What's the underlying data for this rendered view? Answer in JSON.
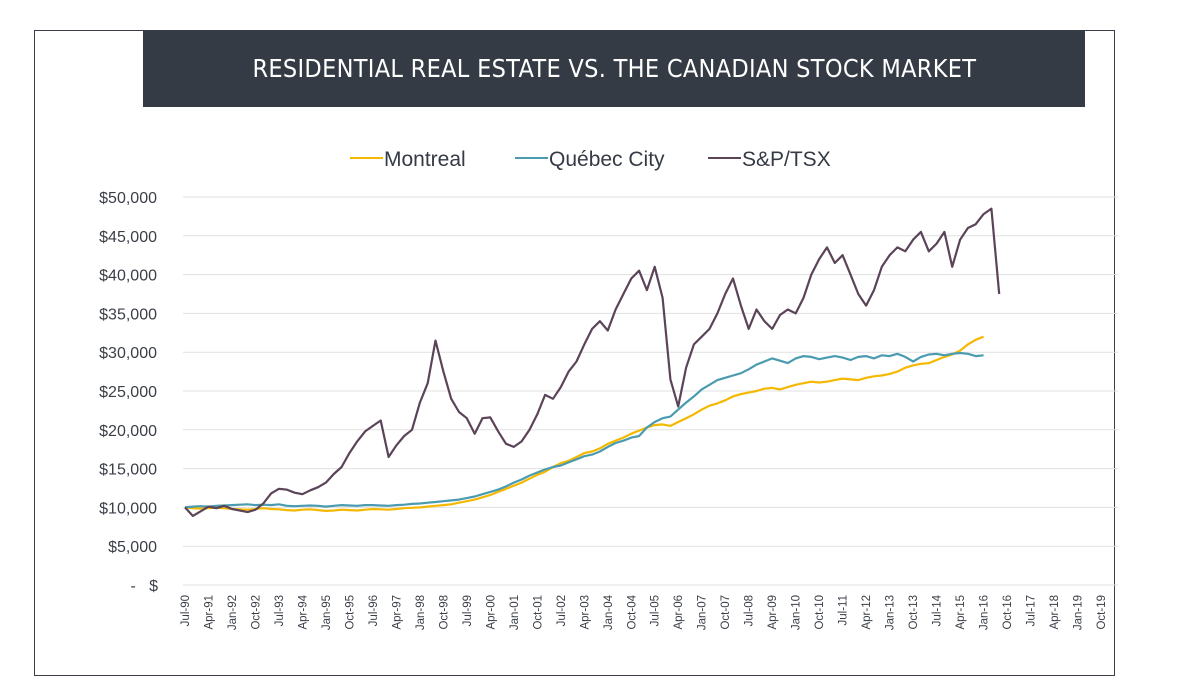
{
  "title": "RESIDENTIAL REAL ESTATE VS. THE CANADIAN STOCK MARKET",
  "chart_data": {
    "type": "line",
    "title": "RESIDENTIAL REAL ESTATE VS. THE CANADIAN STOCK MARKET",
    "xlabel": "",
    "ylabel": "",
    "ylim": [
      0,
      50000
    ],
    "grid": true,
    "legend_position": "top-center",
    "y_ticks": [
      0,
      5000,
      10000,
      15000,
      20000,
      25000,
      30000,
      35000,
      40000,
      45000,
      50000
    ],
    "y_tick_labels": [
      "-   $",
      "$5,000",
      "$10,000",
      "$15,000",
      "$20,000",
      "$25,000",
      "$30,000",
      "$35,000",
      "$40,000",
      "$45,000",
      "$50,000"
    ],
    "x_tick_labels": [
      "Jul-90",
      "Apr-91",
      "Jan-92",
      "Oct-92",
      "Jul-93",
      "Apr-94",
      "Jan-95",
      "Oct-95",
      "Jul-96",
      "Apr-97",
      "Jan-98",
      "Oct-98",
      "Jul-99",
      "Apr-00",
      "Jan-01",
      "Oct-01",
      "Jul-02",
      "Apr-03",
      "Jan-04",
      "Oct-04",
      "Jul-05",
      "Apr-06",
      "Jan-07",
      "Oct-07",
      "Jul-08",
      "Apr-09",
      "Jan-10",
      "Oct-10",
      "Jul-11",
      "Apr-12",
      "Jan-13",
      "Oct-13",
      "Jul-14",
      "Apr-15",
      "Jan-16",
      "Oct-16",
      "Jul-17",
      "Apr-18",
      "Jan-19",
      "Oct-19"
    ],
    "x_start": "Jul-90",
    "x_step_months": 3,
    "series": [
      {
        "name": "Montreal",
        "color": "#f5b800",
        "values": [
          10000,
          9900,
          9850,
          9900,
          9950,
          9900,
          9800,
          9750,
          9700,
          9800,
          9900,
          9800,
          9750,
          9650,
          9600,
          9700,
          9750,
          9650,
          9550,
          9600,
          9700,
          9650,
          9600,
          9700,
          9800,
          9750,
          9700,
          9800,
          9900,
          9950,
          10000,
          10100,
          10200,
          10300,
          10400,
          10600,
          10800,
          11000,
          11300,
          11600,
          12000,
          12400,
          12800,
          13200,
          13700,
          14200,
          14600,
          15200,
          15700,
          16000,
          16500,
          17000,
          17200,
          17600,
          18200,
          18600,
          19000,
          19500,
          19900,
          20300,
          20600,
          20700,
          20500,
          21000,
          21500,
          22000,
          22600,
          23100,
          23400,
          23800,
          24300,
          24600,
          24800,
          25000,
          25300,
          25400,
          25200,
          25500,
          25800,
          26000,
          26200,
          26100,
          26200,
          26400,
          26600,
          26500,
          26400,
          26700,
          26900,
          27000,
          27200,
          27500,
          28000,
          28300,
          28500,
          28600,
          29000,
          29400,
          29700,
          30200,
          31000,
          31600,
          32000
        ],
        "extra": {}
      },
      {
        "name": "Québec City",
        "color": "#4a9bb0",
        "values": [
          10000,
          10100,
          10150,
          10100,
          10200,
          10250,
          10300,
          10350,
          10400,
          10300,
          10350,
          10300,
          10400,
          10200,
          10150,
          10200,
          10250,
          10200,
          10100,
          10200,
          10300,
          10250,
          10200,
          10300,
          10300,
          10250,
          10200,
          10300,
          10350,
          10450,
          10500,
          10600,
          10700,
          10800,
          10900,
          11000,
          11200,
          11400,
          11700,
          12000,
          12300,
          12700,
          13200,
          13600,
          14100,
          14500,
          14900,
          15200,
          15400,
          15800,
          16200,
          16600,
          16800,
          17200,
          17800,
          18300,
          18600,
          19000,
          19200,
          20300,
          21000,
          21500,
          21700,
          22600,
          23500,
          24300,
          25200,
          25800,
          26400,
          26700,
          27000,
          27300,
          27800,
          28400,
          28800,
          29200,
          28900,
          28600,
          29200,
          29500,
          29400,
          29100,
          29300,
          29500,
          29300,
          29000,
          29400,
          29500,
          29200,
          29600,
          29500,
          29800,
          29400,
          28800,
          29400,
          29700,
          29800,
          29600,
          29800,
          29900,
          29800,
          29500,
          29600
        ]
      },
      {
        "name": "S&P/TSX",
        "color": "#5b4458",
        "values": [
          10000,
          8900,
          9500,
          10100,
          9900,
          10200,
          9800,
          9600,
          9400,
          9700,
          10500,
          11800,
          12400,
          12300,
          11900,
          11700,
          12200,
          12600,
          13200,
          14300,
          15200,
          17000,
          18500,
          19800,
          20500,
          21200,
          16500,
          18000,
          19200,
          20000,
          23500,
          26000,
          31500,
          27500,
          24000,
          22300,
          21500,
          19500,
          21500,
          21600,
          19800,
          18200,
          17800,
          18500,
          20000,
          22000,
          24500,
          24000,
          25500,
          27500,
          28800,
          31000,
          33000,
          34000,
          32800,
          35500,
          37500,
          39500,
          40500,
          38000,
          41000,
          37000,
          26500,
          23000,
          28000,
          31000,
          32000,
          33000,
          35000,
          37500,
          39500,
          36000,
          33000,
          35500,
          34000,
          33000,
          34800,
          35500,
          35000,
          37000,
          40000,
          42000,
          43500,
          41500,
          42500,
          40000,
          37500,
          36000,
          38000,
          41000,
          42500,
          43500,
          43000,
          44500,
          45500,
          43000,
          44000,
          45500,
          41000,
          44500,
          46000,
          46500,
          47800,
          48500,
          37500
        ]
      }
    ]
  }
}
